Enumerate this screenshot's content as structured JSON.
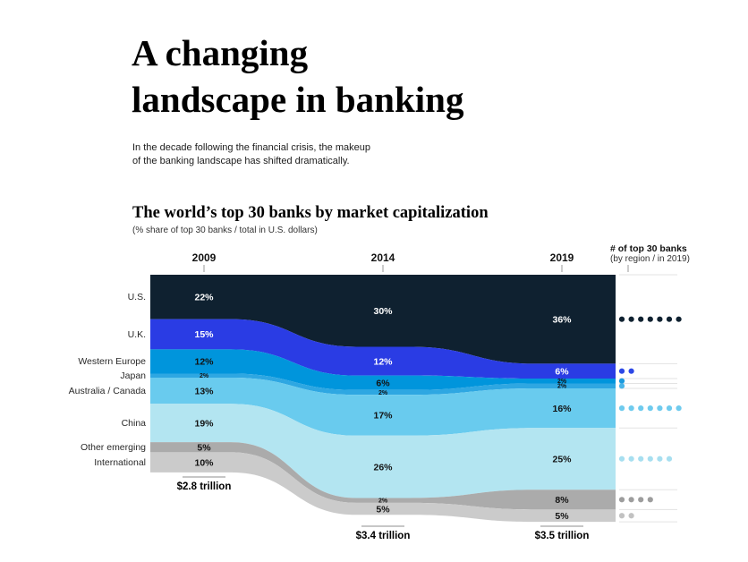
{
  "header": {
    "title_lines": [
      "A changing",
      "landscape in banking"
    ],
    "intro_lines": [
      "In the decade following the financial crisis, the makeup",
      "of the banking landscape has shifted dramatically."
    ]
  },
  "chart": {
    "title": "The world’s top 30 banks by market capitalization",
    "subtitle": "(% share of top 30 banks / total in U.S. dollars)",
    "right_panel_title": "# of top 30 banks",
    "right_panel_subtitle": "(by region / in 2019)"
  },
  "chart_data": {
    "type": "area",
    "variant": "stacked-stream",
    "x": [
      "2009",
      "2014",
      "2019"
    ],
    "totals": [
      "$2.8 trillion",
      "$3.4 trillion",
      "$3.5 trillion"
    ],
    "totals_value_trillions": [
      2.8,
      3.4,
      3.5
    ],
    "unit": "% share of top 30 banks",
    "total_banks": 30,
    "series": [
      {
        "name": "U.S.",
        "values": [
          22,
          30,
          36
        ],
        "color": "#0f2130",
        "label_color": "#ffffff",
        "dot_color": "#0f2130",
        "banks_2019": 7
      },
      {
        "name": "U.K.",
        "values": [
          15,
          12,
          6
        ],
        "color": "#2a3ce4",
        "label_color": "#ffffff",
        "dot_color": "#2c48e6",
        "banks_2019": 2
      },
      {
        "name": "Western Europe",
        "values": [
          12,
          6,
          2
        ],
        "color": "#0095dc",
        "label_color": "#121212",
        "dot_color": "#1b9ade",
        "banks_2019": 1
      },
      {
        "name": "Japan",
        "values": [
          2,
          2,
          2
        ],
        "color": "#2ea7e2",
        "label_color": "#121212",
        "dot_color": "#49b4e8",
        "banks_2019": 1
      },
      {
        "name": "Australia / Canada",
        "values": [
          13,
          17,
          16
        ],
        "color": "#69cbee",
        "label_color": "#121212",
        "dot_color": "#6fcbee",
        "banks_2019": 7
      },
      {
        "name": "China",
        "values": [
          19,
          26,
          25
        ],
        "color": "#b3e5f1",
        "label_color": "#121212",
        "dot_color": "#a7dff0",
        "banks_2019": 6
      },
      {
        "name": "Other emerging",
        "values": [
          5,
          2,
          8
        ],
        "color": "#ababab",
        "label_color": "#121212",
        "dot_color": "#9d9d9d",
        "banks_2019": 4
      },
      {
        "name": "International",
        "values": [
          10,
          5,
          5
        ],
        "color": "#cbcbcb",
        "label_color": "#121212",
        "dot_color": "#c2c2c2",
        "banks_2019": 2
      }
    ]
  }
}
